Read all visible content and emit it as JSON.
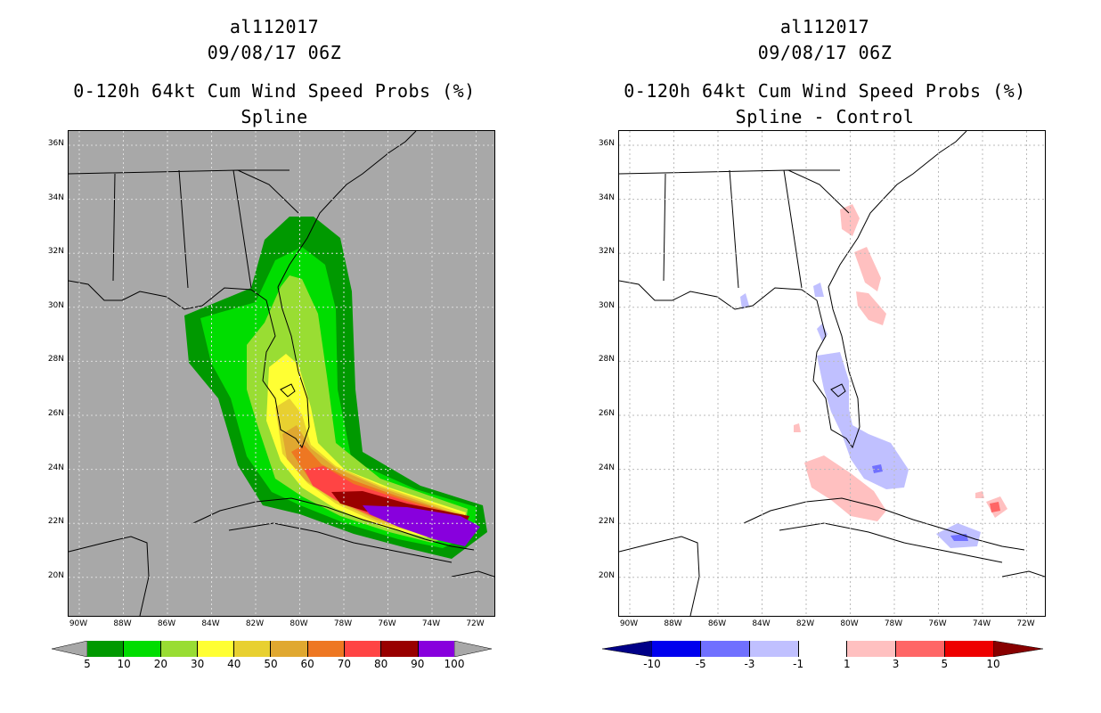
{
  "left_panel": {
    "storm_id": "al112017",
    "datetime": "09/08/17 06Z",
    "product": "0-120h 64kt Cum Wind Speed Probs (%)",
    "method": "Spline",
    "background_color": "#a8a8a8",
    "colorbar": {
      "colors": [
        "#009900",
        "#00dd00",
        "#99dd33",
        "#ffff33",
        "#e8d030",
        "#e0a830",
        "#ee7722",
        "#ff4444",
        "#990000",
        "#8800dd"
      ],
      "labels": [
        "5",
        "10",
        "20",
        "30",
        "40",
        "50",
        "60",
        "70",
        "80",
        "90",
        "100"
      ],
      "left_arrow_color": "#a8a8a8",
      "right_arrow_color": "#a8a8a8"
    }
  },
  "right_panel": {
    "storm_id": "al112017",
    "datetime": "09/08/17 06Z",
    "product": "0-120h 64kt Cum Wind Speed Probs (%)",
    "method": "Spline - Control",
    "background_color": "#ffffff",
    "colorbar": {
      "colors": [
        "#0000ee",
        "#7070ff",
        "#c0c0ff",
        "#ffffff",
        "#ffc0c0",
        "#ff6666",
        "#ee0000"
      ],
      "labels": [
        "-10",
        "-5",
        "-3",
        "-1",
        "1",
        "3",
        "5",
        "10"
      ],
      "left_arrow_color": "#000088",
      "right_arrow_color": "#880000"
    }
  },
  "axes": {
    "lat_labels": [
      "36N",
      "34N",
      "32N",
      "30N",
      "28N",
      "26N",
      "24N",
      "22N",
      "20N"
    ],
    "lon_labels": [
      "90W",
      "88W",
      "86W",
      "84W",
      "82W",
      "80W",
      "78W",
      "76W",
      "74W",
      "72W"
    ]
  }
}
